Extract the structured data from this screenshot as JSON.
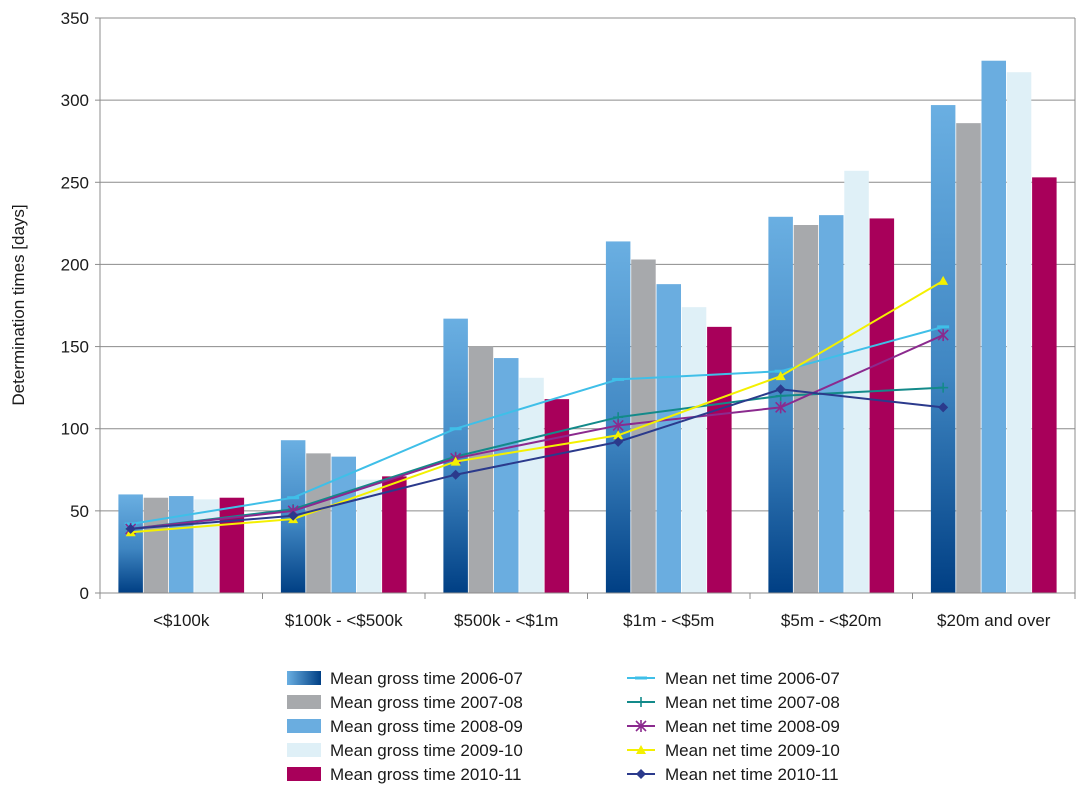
{
  "chart_data": {
    "type": "bar",
    "title": "",
    "ylabel": "Determination times [days]",
    "xlabel": "",
    "ylim": [
      0,
      350
    ],
    "ytick_step": 50,
    "grid": true,
    "legend_position": "bottom",
    "categories": [
      "<$100k",
      "$100k - <$500k",
      "$500k - <$1m",
      "$1m - <$5m",
      "$5m - <$20m",
      "$20m and over"
    ],
    "bar_series": [
      {
        "name": "Mean gross time 2006-07",
        "values": [
          60,
          93,
          167,
          214,
          229,
          297
        ],
        "color": "#5aa1d8",
        "color_bottom": "#0a4a8c",
        "gradient": true
      },
      {
        "name": "Mean gross time 2007-08",
        "values": [
          58,
          85,
          150,
          203,
          224,
          286
        ],
        "color": "#a7a9ac"
      },
      {
        "name": "Mean gross time 2008-09",
        "values": [
          59,
          83,
          143,
          188,
          230,
          324
        ],
        "color": "#6aade0"
      },
      {
        "name": "Mean gross time 2009-10",
        "values": [
          57,
          69,
          131,
          174,
          257,
          317
        ],
        "color": "#dff0f7"
      },
      {
        "name": "Mean gross time 2010-11",
        "values": [
          58,
          71,
          118,
          162,
          228,
          253
        ],
        "color": "#a8005a"
      }
    ],
    "line_series": [
      {
        "name": "Mean net time 2006-07",
        "values": [
          42,
          58,
          100,
          130,
          135,
          162
        ],
        "color": "#3fbfe8",
        "marker": "dash"
      },
      {
        "name": "Mean net time 2007-08",
        "values": [
          39,
          51,
          83,
          107,
          120,
          125
        ],
        "color": "#138a8a",
        "marker": "plus"
      },
      {
        "name": "Mean net time 2008-09",
        "values": [
          39,
          50,
          82,
          102,
          113,
          157
        ],
        "color": "#8b2a8e",
        "marker": "star"
      },
      {
        "name": "Mean net time 2009-10",
        "values": [
          37,
          45,
          80,
          96,
          132,
          190
        ],
        "color": "#f4f000",
        "marker": "triangle"
      },
      {
        "name": "Mean net time 2010-11",
        "values": [
          39,
          47,
          72,
          92,
          124,
          113
        ],
        "color": "#2b3a8c",
        "marker": "diamond"
      }
    ]
  }
}
